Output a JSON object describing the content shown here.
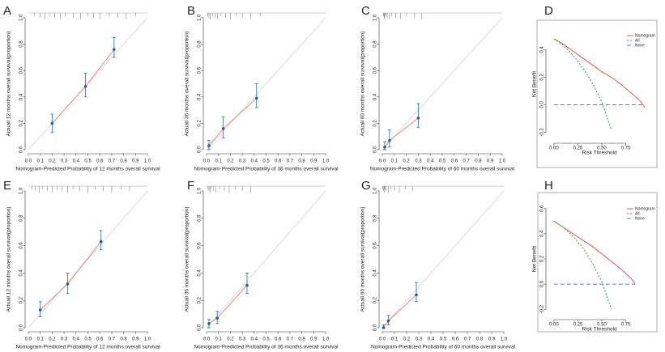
{
  "chart_data": [
    {
      "type": "calibration",
      "label": "A",
      "xlabel": "Nomogram-Predicted Probability of 12 months overall survival",
      "ylabel": "Actuall 12 months overall survival(proportion)",
      "xlim": [
        0,
        1
      ],
      "ylim": [
        0,
        1
      ],
      "xticks": [
        {
          "value": 0,
          "label": "0.0"
        },
        0.1,
        0.2,
        0.3,
        0.4,
        0.5,
        0.6,
        0.7,
        0.8,
        0.9,
        {
          "value": 1,
          "label": "1.0"
        }
      ],
      "yticks": [
        {
          "value": 0,
          "label": "0.0"
        },
        0.2,
        0.4,
        0.6,
        0.8,
        {
          "value": 1,
          "label": "1.0"
        }
      ],
      "x": [
        0.2,
        0.48,
        0.72
      ],
      "values": [
        0.2,
        0.48,
        0.76
      ],
      "lower": [
        0.13,
        0.4,
        0.7
      ],
      "upper": [
        0.27,
        0.58,
        0.85
      ],
      "rug": [
        0.05,
        0.1,
        0.14,
        0.18,
        0.22,
        0.27,
        0.31,
        0.38,
        0.44,
        0.5,
        0.55,
        0.6,
        0.68,
        0.75,
        0.82,
        0.9
      ]
    },
    {
      "type": "calibration",
      "label": "B",
      "xlabel": "Nomogram-Predicted Probability of 36 months overall survival",
      "ylabel": "Actuall 36 months overall survival(proportion)",
      "xlim": [
        0,
        1
      ],
      "ylim": [
        0,
        1
      ],
      "xticks": [
        {
          "value": 0,
          "label": "0.0"
        },
        0.1,
        0.2,
        0.3,
        0.4,
        0.5,
        0.6,
        0.7,
        0.8,
        0.9,
        {
          "value": 1,
          "label": "1.0"
        }
      ],
      "yticks": [
        {
          "value": 0,
          "label": "0.0"
        },
        0.2,
        0.4,
        0.6,
        0.8,
        {
          "value": 1,
          "label": "1.0"
        }
      ],
      "x": [
        0.02,
        0.14,
        0.42
      ],
      "values": [
        0.03,
        0.16,
        0.39
      ],
      "lower": [
        0,
        0.09,
        0.32
      ],
      "upper": [
        0.07,
        0.25,
        0.5
      ],
      "rug": [
        0.01,
        0.02,
        0.03,
        0.05,
        0.07,
        0.09,
        0.12,
        0.16,
        0.2,
        0.25,
        0.3,
        0.37,
        0.45
      ]
    },
    {
      "type": "calibration",
      "label": "C",
      "xlabel": "Nomogram-Predicted Probability of 60 months overall survival",
      "ylabel": "Actuall 60 months overall survival(proportion)",
      "xlim": [
        0,
        1
      ],
      "ylim": [
        0,
        1
      ],
      "xticks": [
        {
          "value": 0,
          "label": "0.0"
        },
        0.1,
        0.2,
        0.3,
        0.4,
        0.5,
        0.6,
        0.7,
        0.8,
        0.9,
        {
          "value": 1,
          "label": "1.0"
        }
      ],
      "yticks": [
        {
          "value": 0,
          "label": "0.0"
        },
        0.2,
        0.4,
        0.6,
        0.8,
        {
          "value": 1,
          "label": "1.0"
        }
      ],
      "x": [
        0.02,
        0.06,
        0.3
      ],
      "values": [
        0.02,
        0.07,
        0.24
      ],
      "lower": [
        0,
        0.02,
        0.17
      ],
      "upper": [
        0.06,
        0.15,
        0.35
      ],
      "rug": [
        0.01,
        0.015,
        0.02,
        0.03,
        0.04,
        0.06,
        0.08,
        0.11,
        0.15,
        0.2,
        0.27,
        0.33
      ]
    },
    {
      "type": "dca",
      "label": "D",
      "xlabel": "Risk Threshold",
      "ylabel": "Net Benefit",
      "xlim": [
        -0.05,
        1.0
      ],
      "ylim": [
        -0.25,
        0.55
      ],
      "xticks": [
        {
          "value": 0,
          "label": "0.00"
        },
        0.25,
        {
          "value": 0.5,
          "label": "0.50"
        },
        0.75
      ],
      "yticks": [
        -0.2,
        {
          "value": 0,
          "label": "0.0"
        },
        0.2,
        0.4
      ],
      "x": [
        0,
        0.1,
        0.2,
        0.3,
        0.4,
        0.5,
        0.6,
        0.7,
        0.8,
        0.9,
        0.95
      ],
      "series": [
        {
          "name": "Nomogram",
          "color": "#e0554b",
          "dash": "none",
          "values": [
            0.48,
            0.44,
            0.39,
            0.34,
            0.29,
            0.24,
            0.2,
            0.15,
            0.09,
            0.03,
            -0.02
          ]
        },
        {
          "name": "All",
          "color": "#2a9d3a",
          "dash": "2,2",
          "values": [
            0.48,
            0.43,
            0.36,
            0.27,
            0.16,
            0.02,
            -0.18,
            null,
            null,
            null,
            null
          ]
        },
        {
          "name": "None",
          "color": "#4a7fd4",
          "dash": "5,3",
          "values": [
            0,
            0,
            0,
            0,
            0,
            0,
            0,
            0,
            0,
            0,
            0
          ]
        }
      ]
    },
    {
      "type": "calibration",
      "label": "E",
      "xlabel": "Nomogram-Predicted Probability of 12 months overall survival",
      "ylabel": "Actuall 12 months overall survival(proportion)",
      "xlim": [
        0,
        1
      ],
      "ylim": [
        0,
        1
      ],
      "xticks": [
        {
          "value": 0,
          "label": "0.0"
        },
        0.1,
        0.2,
        0.3,
        0.4,
        0.5,
        0.6,
        0.7,
        0.8,
        0.9,
        {
          "value": 1,
          "label": "1.0"
        }
      ],
      "yticks": [
        {
          "value": 0,
          "label": "0.0"
        },
        0.2,
        0.4,
        0.6,
        0.8,
        {
          "value": 1,
          "label": "1.0"
        }
      ],
      "x": [
        0.1,
        0.33,
        0.61
      ],
      "values": [
        0.13,
        0.32,
        0.63
      ],
      "lower": [
        0.08,
        0.25,
        0.57
      ],
      "upper": [
        0.19,
        0.4,
        0.71
      ],
      "rug": [
        0.03,
        0.06,
        0.09,
        0.12,
        0.16,
        0.2,
        0.24,
        0.28,
        0.33,
        0.38,
        0.43,
        0.5,
        0.56,
        0.63,
        0.7,
        0.78,
        0.85
      ]
    },
    {
      "type": "calibration",
      "label": "F",
      "xlabel": "Nomogram-Predicted Probability of 36 months overall survival",
      "ylabel": "Actuall 36 months overall survival(proportion)",
      "xlim": [
        0,
        1
      ],
      "ylim": [
        0,
        1
      ],
      "xticks": [
        {
          "value": 0,
          "label": "0.0"
        },
        0.1,
        0.2,
        0.3,
        0.4,
        0.5,
        0.6,
        0.7,
        0.8,
        0.9,
        {
          "value": 1,
          "label": "1.0"
        }
      ],
      "yticks": [
        {
          "value": 0,
          "label": "0.0"
        },
        0.2,
        0.4,
        0.6,
        0.8,
        {
          "value": 1,
          "label": "1.0"
        }
      ],
      "x": [
        0.02,
        0.09,
        0.34
      ],
      "values": [
        0.03,
        0.07,
        0.31
      ],
      "lower": [
        0,
        0.03,
        0.25
      ],
      "upper": [
        0.06,
        0.12,
        0.4
      ],
      "rug": [
        0.01,
        0.02,
        0.03,
        0.04,
        0.06,
        0.08,
        0.11,
        0.15,
        0.19,
        0.24,
        0.3,
        0.37
      ]
    },
    {
      "type": "calibration",
      "label": "G",
      "xlabel": "Nomogram-Predicted Probability of 60 months overall survival",
      "ylabel": "Actuall 60 months overall survival(proportion)",
      "xlim": [
        0,
        1
      ],
      "ylim": [
        0,
        1
      ],
      "xticks": [
        {
          "value": 0,
          "label": "0.0"
        },
        0.1,
        0.2,
        0.3,
        0.4,
        0.5,
        0.6,
        0.7,
        0.8,
        0.9,
        {
          "value": 1,
          "label": "1.0"
        }
      ],
      "yticks": [
        {
          "value": 0,
          "label": "0.0"
        },
        0.2,
        0.4,
        0.6,
        0.8,
        {
          "value": 1,
          "label": "1.0"
        }
      ],
      "x": [
        0.01,
        0.05,
        0.28
      ],
      "values": [
        0,
        0.05,
        0.24
      ],
      "lower": [
        0,
        0.02,
        0.19
      ],
      "upper": [
        0.02,
        0.09,
        0.33
      ],
      "rug": [
        0.005,
        0.01,
        0.015,
        0.02,
        0.03,
        0.05,
        0.07,
        0.1,
        0.14,
        0.19,
        0.25
      ]
    },
    {
      "type": "dca",
      "label": "H",
      "xlabel": "Risk Threshold",
      "ylabel": "Net Benefit",
      "xlim": [
        -0.05,
        1.0
      ],
      "ylim": [
        -0.25,
        0.65
      ],
      "xticks": [
        {
          "value": 0,
          "label": "0.00"
        },
        0.25,
        {
          "value": 0.5,
          "label": "0.50"
        },
        0.75
      ],
      "yticks": [
        -0.2,
        {
          "value": 0,
          "label": "0.0"
        },
        0.2,
        0.4,
        0.6
      ],
      "x": [
        0,
        0.1,
        0.2,
        0.3,
        0.4,
        0.5,
        0.6,
        0.7,
        0.8,
        0.85
      ],
      "series": [
        {
          "name": "Nomogram",
          "color": "#e0554b",
          "dash": "none",
          "values": [
            0.5,
            0.45,
            0.4,
            0.35,
            0.3,
            0.24,
            0.18,
            0.12,
            0.05,
            0
          ]
        },
        {
          "name": "All",
          "color": "#2a9d3a",
          "dash": "2,2",
          "values": [
            0.5,
            0.45,
            0.38,
            0.29,
            0.17,
            0.02,
            -0.2,
            null,
            null,
            null
          ]
        },
        {
          "name": "None",
          "color": "#4a7fd4",
          "dash": "5,3",
          "values": [
            0,
            0,
            0,
            0,
            0,
            0,
            0,
            0,
            0,
            0
          ]
        }
      ]
    }
  ]
}
